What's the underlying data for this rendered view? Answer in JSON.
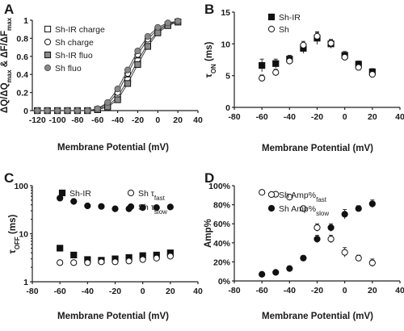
{
  "panels": [
    {
      "letter": "A",
      "chart_data": {
        "type": "line",
        "ylabel": "ΔQ/ΔQmax & ΔF/ΔFmax",
        "xlabel": "Membrane Potential (mV)",
        "xlim": [
          -125,
          40
        ],
        "ylim": [
          0,
          1
        ],
        "xticks": [
          "-120",
          "-100",
          "-80",
          "-60",
          "-40",
          "-20",
          "0",
          "20",
          "40"
        ],
        "xtick_values": [
          -120,
          -100,
          -80,
          -60,
          -40,
          -20,
          0,
          20,
          40
        ],
        "yticks": [
          "0",
          "0.2",
          "0.4",
          "0.6",
          "0.8",
          "1"
        ],
        "ytick_values": [
          0,
          0.2,
          0.4,
          0.6,
          0.8,
          1
        ],
        "legend": "top-left",
        "series": [
          {
            "name": "Sh-IR charge",
            "marker": "square-open",
            "x": [
              -120,
              -110,
              -100,
              -90,
              -80,
              -70,
              -60,
              -50,
              -40,
              -30,
              -20,
              -10,
              0,
              10,
              20
            ],
            "y": [
              0,
              0,
              0,
              0,
              0,
              0,
              0.01,
              0.05,
              0.15,
              0.34,
              0.55,
              0.74,
              0.88,
              0.95,
              0.98
            ]
          },
          {
            "name": "Sh charge",
            "marker": "circle-open",
            "x": [
              -120,
              -110,
              -100,
              -90,
              -80,
              -70,
              -60,
              -50,
              -40,
              -30,
              -20,
              -10,
              0,
              10,
              20
            ],
            "y": [
              0,
              0,
              0,
              0,
              0,
              0,
              0.02,
              0.07,
              0.2,
              0.41,
              0.62,
              0.79,
              0.9,
              0.96,
              0.99
            ]
          },
          {
            "name": "Sh-IR fluo",
            "marker": "square-gray",
            "x": [
              -120,
              -110,
              -100,
              -90,
              -80,
              -70,
              -60,
              -50,
              -40,
              -30,
              -20,
              -10,
              0,
              10,
              20
            ],
            "y": [
              0,
              0,
              0,
              0,
              0,
              0,
              0.01,
              0.04,
              0.12,
              0.3,
              0.51,
              0.71,
              0.86,
              0.94,
              0.98
            ]
          },
          {
            "name": "Sh fluo",
            "marker": "circle-gray",
            "x": [
              -120,
              -110,
              -100,
              -90,
              -80,
              -70,
              -60,
              -50,
              -40,
              -30,
              -20,
              -10,
              0,
              10,
              20
            ],
            "y": [
              0,
              0,
              0,
              0,
              0,
              0,
              0.02,
              0.09,
              0.24,
              0.45,
              0.66,
              0.82,
              0.92,
              0.97,
              0.99
            ]
          }
        ]
      }
    },
    {
      "letter": "B",
      "chart_data": {
        "type": "scatter",
        "ylabel": "τON (ms)",
        "ylabel_main": "τ",
        "ylabel_sub": "ON",
        "ylabel_unit": " (ms)",
        "xlabel": "Membrane Potential (mV)",
        "xlim": [
          -80,
          40
        ],
        "ylim": [
          0,
          15
        ],
        "xticks": [
          "-80",
          "-60",
          "-40",
          "-20",
          "0",
          "20",
          "40"
        ],
        "xtick_values": [
          -80,
          -60,
          -40,
          -20,
          0,
          20,
          40
        ],
        "yticks": [
          "0",
          "5",
          "10",
          "15"
        ],
        "ytick_values": [
          0,
          5,
          10,
          15
        ],
        "legend": "top-left",
        "series": [
          {
            "name": "Sh-IR",
            "marker": "square-filled",
            "x": [
              -60,
              -50,
              -40,
              -30,
              -20,
              -10,
              0,
              10,
              20
            ],
            "y": [
              6.6,
              6.9,
              7.6,
              9.3,
              10.9,
              10.0,
              8.2,
              6.8,
              5.6
            ],
            "err": [
              1.0,
              0.7,
              0.6,
              0.8,
              1.0,
              0.7,
              0.6,
              0.5,
              0.5
            ]
          },
          {
            "name": "Sh",
            "marker": "circle-open",
            "x": [
              -60,
              -50,
              -40,
              -30,
              -20,
              -10,
              0,
              10,
              20
            ],
            "y": [
              4.6,
              5.5,
              7.3,
              9.8,
              11.2,
              10.1,
              7.9,
              6.3,
              5.2
            ],
            "err": [
              0.5,
              0.5,
              0.5,
              0.6,
              0.6,
              0.5,
              0.4,
              0.4,
              0.4
            ]
          }
        ]
      }
    },
    {
      "letter": "C",
      "chart_data": {
        "type": "scatter",
        "ylabel": "τOFF (ms)",
        "ylabel_main": "τ",
        "ylabel_sub": "OFF",
        "ylabel_unit": " (ms)",
        "xlabel": "Membrane Potential (mV)",
        "xlim": [
          -80,
          40
        ],
        "ylim": [
          1,
          100
        ],
        "yscale": "log",
        "xticks": [
          "-80",
          "-60",
          "-40",
          "-20",
          "0",
          "20",
          "40"
        ],
        "xtick_values": [
          -80,
          -60,
          -40,
          -20,
          0,
          20,
          40
        ],
        "yticks": [
          "1",
          "10",
          "100"
        ],
        "ytick_values": [
          1,
          10,
          100
        ],
        "legend": "top",
        "series": [
          {
            "name": "Sh-IR",
            "marker": "square-filled",
            "x": [
              -60,
              -50,
              -40,
              -30,
              -20,
              -10,
              0,
              10,
              20
            ],
            "y": [
              5.0,
              3.6,
              2.9,
              2.8,
              3.0,
              3.2,
              3.5,
              3.6,
              4.0
            ]
          },
          {
            "name": "Sh τfast",
            "name_main": "Sh τ",
            "name_sub": "fast",
            "marker": "circle-open",
            "x": [
              -60,
              -50,
              -40,
              -30,
              -20,
              -10,
              0,
              10,
              20
            ],
            "y": [
              2.5,
              2.5,
              2.5,
              2.6,
              2.6,
              2.7,
              2.9,
              3.1,
              3.4
            ]
          },
          {
            "name": "Sh τslow",
            "name_main": "Sh τ",
            "name_sub": "slow",
            "marker": "circle-filled",
            "x": [
              -60,
              -50,
              -40,
              -30,
              -20,
              -10,
              0,
              10,
              20
            ],
            "y": [
              55,
              47,
              38,
              37,
              33,
              33,
              35,
              35,
              36
            ]
          }
        ]
      }
    },
    {
      "letter": "D",
      "chart_data": {
        "type": "scatter",
        "ylabel": "Amp%",
        "xlabel": "Membrane Potential (mV)",
        "xlim": [
          -80,
          40
        ],
        "ylim": [
          0,
          100
        ],
        "xticks": [
          "-80",
          "-60",
          "-40",
          "-20",
          "0",
          "20",
          "40"
        ],
        "xtick_values": [
          -80,
          -60,
          -40,
          -20,
          0,
          20,
          40
        ],
        "yticks": [
          "0%",
          "20%",
          "40%",
          "60%",
          "80%",
          "100%"
        ],
        "ytick_values": [
          0,
          20,
          40,
          60,
          80,
          100
        ],
        "legend": "top",
        "series": [
          {
            "name": "Sh Amp%fast",
            "name_main": "Sh Amp%",
            "name_sub": "fast",
            "marker": "circle-open",
            "x": [
              -60,
              -50,
              -40,
              -30,
              -20,
              -10,
              0,
              10,
              20
            ],
            "y": [
              93,
              91,
              88,
              76,
              56,
              44,
              30,
              24,
              19
            ],
            "err": [
              1.5,
              1.5,
              2,
              2.5,
              4,
              4,
              5,
              3,
              4
            ]
          },
          {
            "name": "Sh Amp%slow",
            "name_main": "Sh Amp%",
            "name_sub": "slow",
            "marker": "circle-filled",
            "x": [
              -60,
              -50,
              -40,
              -30,
              -20,
              -10,
              0,
              10,
              20
            ],
            "y": [
              7,
              9,
              13,
              24,
              44,
              56,
              70,
              76,
              81
            ],
            "err": [
              1.5,
              1.5,
              2,
              2.5,
              4,
              4,
              5,
              3,
              4
            ]
          }
        ]
      }
    }
  ]
}
